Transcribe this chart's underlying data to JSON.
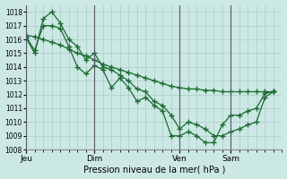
{
  "title": "Pression niveau de la mer( hPa )",
  "background_color": "#cce8e4",
  "plot_bg_color": "#cce8e4",
  "grid_color": "#aaccc8",
  "line_color": "#1a6b30",
  "ylim": [
    1008,
    1018.5
  ],
  "yticks": [
    1008,
    1009,
    1010,
    1011,
    1012,
    1013,
    1014,
    1015,
    1016,
    1017,
    1018
  ],
  "xtick_labels": [
    "Jeu",
    "Dim",
    "Ven",
    "Sam"
  ],
  "xtick_positions": [
    0,
    8,
    18,
    24
  ],
  "vlines_x": [
    0,
    8,
    18,
    24
  ],
  "xlim": [
    0,
    30
  ],
  "series": [
    {
      "x": [
        0,
        1,
        2,
        3,
        4,
        5,
        6,
        7,
        8,
        9,
        10,
        11,
        12,
        13,
        14,
        15,
        16,
        17,
        18,
        19,
        20,
        21,
        22,
        23,
        24,
        25,
        26,
        27,
        28,
        29
      ],
      "y": [
        1016.3,
        1016.2,
        1016.0,
        1015.8,
        1015.6,
        1015.3,
        1015.0,
        1014.8,
        1014.5,
        1014.2,
        1014.0,
        1013.8,
        1013.6,
        1013.4,
        1013.2,
        1013.0,
        1012.8,
        1012.6,
        1012.5,
        1012.4,
        1012.4,
        1012.3,
        1012.3,
        1012.2,
        1012.2,
        1012.2,
        1012.2,
        1012.2,
        1012.2,
        1012.2
      ]
    },
    {
      "x": [
        0,
        1,
        2,
        3,
        4,
        5,
        6,
        7,
        8,
        9,
        10,
        11,
        12,
        13,
        14,
        15,
        16,
        17,
        18,
        19,
        20,
        21,
        22,
        23,
        24,
        25,
        26,
        27,
        28,
        29
      ],
      "y": [
        1016.2,
        1015.2,
        1017.0,
        1017.0,
        1016.8,
        1015.5,
        1014.0,
        1013.5,
        1014.1,
        1013.8,
        1012.5,
        1013.2,
        1012.5,
        1011.5,
        1011.8,
        1011.2,
        1010.8,
        1009.0,
        1009.0,
        1009.3,
        1009.0,
        1008.5,
        1008.5,
        1009.8,
        1010.5,
        1010.5,
        1010.8,
        1011.0,
        1012.1,
        1012.2
      ]
    },
    {
      "x": [
        0,
        1,
        2,
        3,
        4,
        5,
        6,
        7,
        8,
        9,
        10,
        11,
        12,
        13,
        14,
        15,
        16,
        17,
        18,
        19,
        20,
        21,
        22,
        23,
        24,
        25,
        26,
        27,
        28,
        29
      ],
      "y": [
        1016.1,
        1015.0,
        1017.5,
        1018.0,
        1017.2,
        1016.0,
        1015.5,
        1014.5,
        1015.0,
        1014.0,
        1013.8,
        1013.4,
        1013.0,
        1012.4,
        1012.2,
        1011.5,
        1011.2,
        1010.5,
        1009.5,
        1010.0,
        1009.8,
        1009.5,
        1009.0,
        1009.0,
        1009.3,
        1009.5,
        1009.8,
        1010.0,
        1011.8,
        1012.2
      ]
    }
  ],
  "marker": "+",
  "markersize": 4,
  "linewidth": 0.9
}
